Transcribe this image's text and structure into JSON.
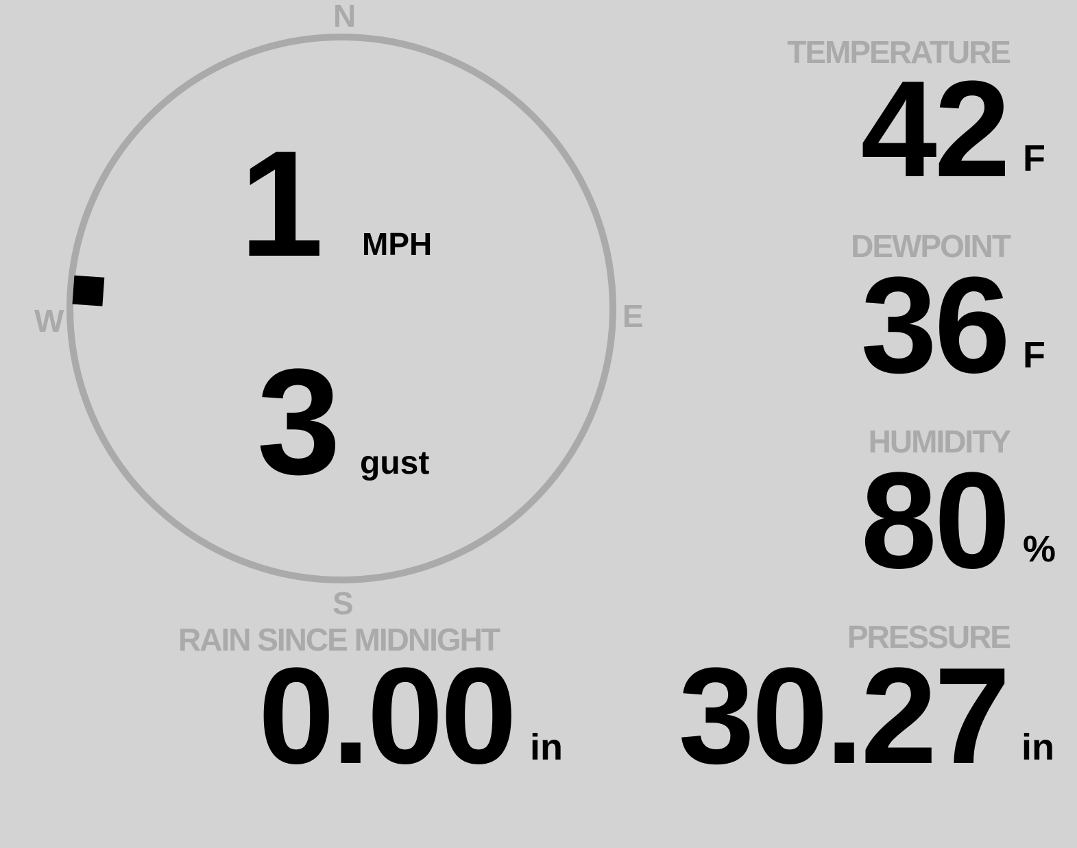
{
  "compass": {
    "north": "N",
    "south": "S",
    "east": "E",
    "west": "W"
  },
  "wind": {
    "speed": "1",
    "speed_unit": "MPH",
    "gust": "3",
    "gust_unit": "gust",
    "direction_deg": 274
  },
  "colors": {
    "background": "#d3d3d3",
    "label": "#aaaaaa",
    "value": "#000000"
  },
  "temperature": {
    "label": "TEMPERATURE",
    "value": "42",
    "unit": "F"
  },
  "dewpoint": {
    "label": "DEWPOINT",
    "value": "36",
    "unit": "F"
  },
  "humidity": {
    "label": "HUMIDITY",
    "value": "80",
    "unit": "%"
  },
  "pressure": {
    "label": "PRESSURE",
    "value": "30.27",
    "unit": "in"
  },
  "rain": {
    "label": "RAIN SINCE MIDNIGHT",
    "value": "0.00",
    "unit": "in"
  }
}
